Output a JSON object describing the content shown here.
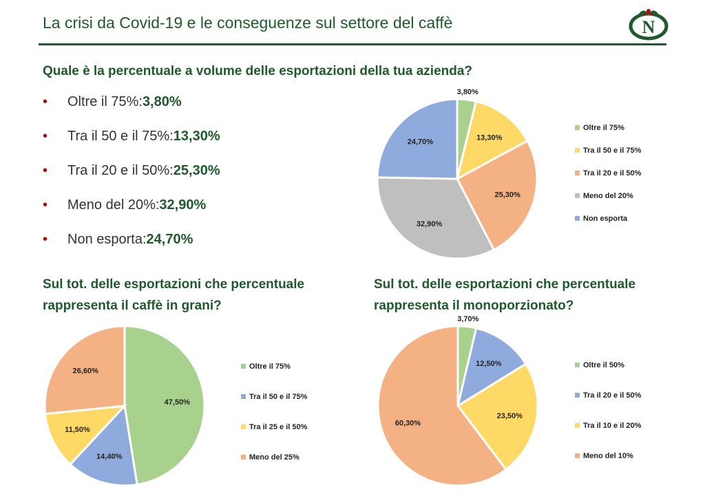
{
  "slide": {
    "title": "La crisi da Covid-19 e le conseguenze sul settore del caffè"
  },
  "q1": {
    "question": "Quale è la percentuale a volume delle esportazioni della tua azienda?",
    "bullets": [
      {
        "label": "Oltre il 75%: ",
        "value": "3,80%"
      },
      {
        "label": "Tra il 50 e il 75%: ",
        "value": "13,30%"
      },
      {
        "label": "Tra il 20 e il 50%: ",
        "value": "25,30%"
      },
      {
        "label": "Meno del 20%: ",
        "value": "32,90%"
      },
      {
        "label": "Non esporta: ",
        "value": "24,70%"
      }
    ]
  },
  "q2": {
    "question": "Sul tot. delle esportazioni che percentuale rappresenta il caffè in grani?"
  },
  "q3": {
    "question": "Sul tot. delle esportazioni che percentuale rappresenta il monoporzionato?"
  },
  "chart_data": [
    {
      "type": "pie",
      "categories": [
        "Oltre il 75%",
        "Tra il 50 e il 75%",
        "Tra il 20 e il 50%",
        "Meno del 20%",
        "Non esporta"
      ],
      "values": [
        3.8,
        13.3,
        25.3,
        32.9,
        24.7
      ],
      "labels": [
        "3,80%",
        "13,30%",
        "25,30%",
        "32,90%",
        "24,70%"
      ],
      "colors": [
        "#a9d18e",
        "#ffd966",
        "#f4b183",
        "#bfbfbf",
        "#8faadc"
      ],
      "legend": "right"
    },
    {
      "type": "pie",
      "categories": [
        "Oltre il 75%",
        "Tra il 50 e il 75%",
        "Tra il 25 e il 50%",
        "Meno del 25%"
      ],
      "values": [
        47.5,
        14.4,
        11.5,
        26.6
      ],
      "labels": [
        "47,50%",
        "14,40%",
        "11,50%",
        "26,60%"
      ],
      "colors": [
        "#a9d18e",
        "#8faadc",
        "#ffd966",
        "#f4b183"
      ],
      "legend": "right"
    },
    {
      "type": "pie",
      "categories": [
        "Oltre il 50%",
        "Tra il 20 e il 50%",
        "Tra il 10 e il 20%",
        "Meno del 10%"
      ],
      "values": [
        3.7,
        12.5,
        23.5,
        60.3
      ],
      "labels": [
        "3,70%",
        "12,50%",
        "23,50%",
        "60,30%"
      ],
      "colors": [
        "#a9d18e",
        "#8faadc",
        "#ffd966",
        "#f4b183"
      ],
      "legend": "right"
    }
  ]
}
